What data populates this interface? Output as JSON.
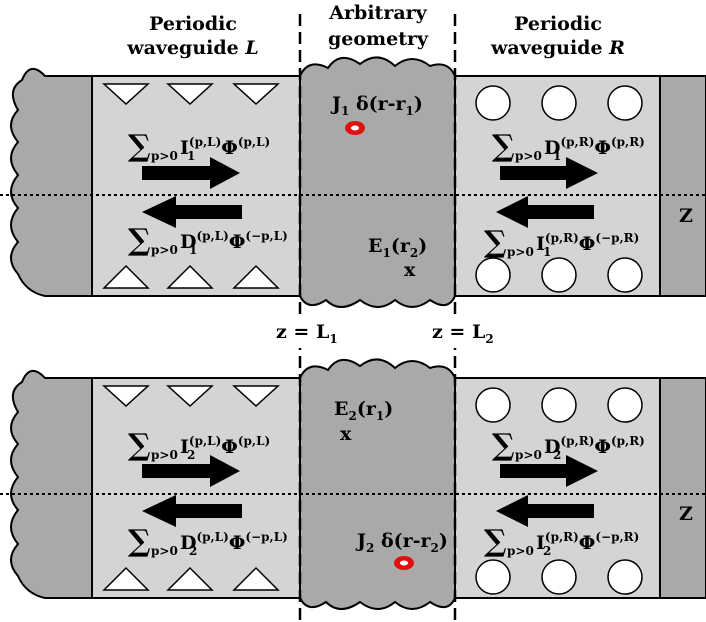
{
  "headers": {
    "left_line1": "Periodic",
    "left_line2": "waveguide ",
    "left_italic": "L",
    "middle_line1": "Arbitrary",
    "middle_line2": "geometry",
    "right_line1": "Periodic",
    "right_line2": "waveguide ",
    "right_italic": "R"
  },
  "boundaries": {
    "z_L1": "z = L",
    "z_L1_sub": "1",
    "z_L2": "z = L",
    "z_L2_sub": "2"
  },
  "axis_label": "Z",
  "panel1": {
    "source": {
      "J": "J",
      "J_sub": "1",
      "delta": " δ(r-r",
      "delta_sub": "1",
      "close": ")"
    },
    "probe": {
      "E": "E",
      "E_sub": "1",
      "arg": "(r",
      "arg_sub": "2",
      "close": ")",
      "marker": "x"
    },
    "left_forward": {
      "sum": "∑",
      "sub": "p>0",
      "coef": "I",
      "coef_sub": "1",
      "coef_sup": "(p,L)",
      "phi": "Φ",
      "phi_sup": "(p,L)"
    },
    "left_backward": {
      "sum": "∑",
      "sub": "p>0",
      "coef": "D",
      "coef_sub": "1",
      "coef_sup": "(p,L)",
      "phi": "Φ",
      "phi_sup": "(−p,L)"
    },
    "right_forward": {
      "sum": "∑",
      "sub": "p>0",
      "coef": "D",
      "coef_sub": "1",
      "coef_sup": "(p,R)",
      "phi": "Φ",
      "phi_sup": "(p,R)"
    },
    "right_backward": {
      "sum": "∑",
      "sub": "p>0",
      "coef": "I",
      "coef_sub": "1",
      "coef_sup": "(p,R)",
      "phi": "Φ",
      "phi_sup": "(−p,R)"
    }
  },
  "panel2": {
    "source": {
      "J": "J",
      "J_sub": "2",
      "delta": " δ(r-r",
      "delta_sub": "2",
      "close": ")"
    },
    "probe": {
      "E": "E",
      "E_sub": "2",
      "arg": "(r",
      "arg_sub": "1",
      "close": ")",
      "marker": "x"
    },
    "left_forward": {
      "sum": "∑",
      "sub": "p>0",
      "coef": "I",
      "coef_sub": "2",
      "coef_sup": "(p,L)",
      "phi": "Φ",
      "phi_sup": "(p,L)"
    },
    "left_backward": {
      "sum": "∑",
      "sub": "p>0",
      "coef": "D",
      "coef_sub": "2",
      "coef_sup": "(p,L)",
      "phi": "Φ",
      "phi_sup": "(−p,L)"
    },
    "right_forward": {
      "sum": "∑",
      "sub": "p>0",
      "coef": "D",
      "coef_sub": "2",
      "coef_sup": "(p,R)",
      "phi": "Φ",
      "phi_sup": "(p,R)"
    },
    "right_backward": {
      "sum": "∑",
      "sub": "p>0",
      "coef": "I",
      "coef_sub": "2",
      "coef_sup": "(p,R)",
      "phi": "Φ",
      "phi_sup": "(−p,R)"
    }
  },
  "colors": {
    "outer_gray": "#a9a9a9",
    "waveguide_fill": "#d4d4d4",
    "scatterer_fill": "#ffffff",
    "source_red": "#e01010",
    "outline": "#000000"
  }
}
